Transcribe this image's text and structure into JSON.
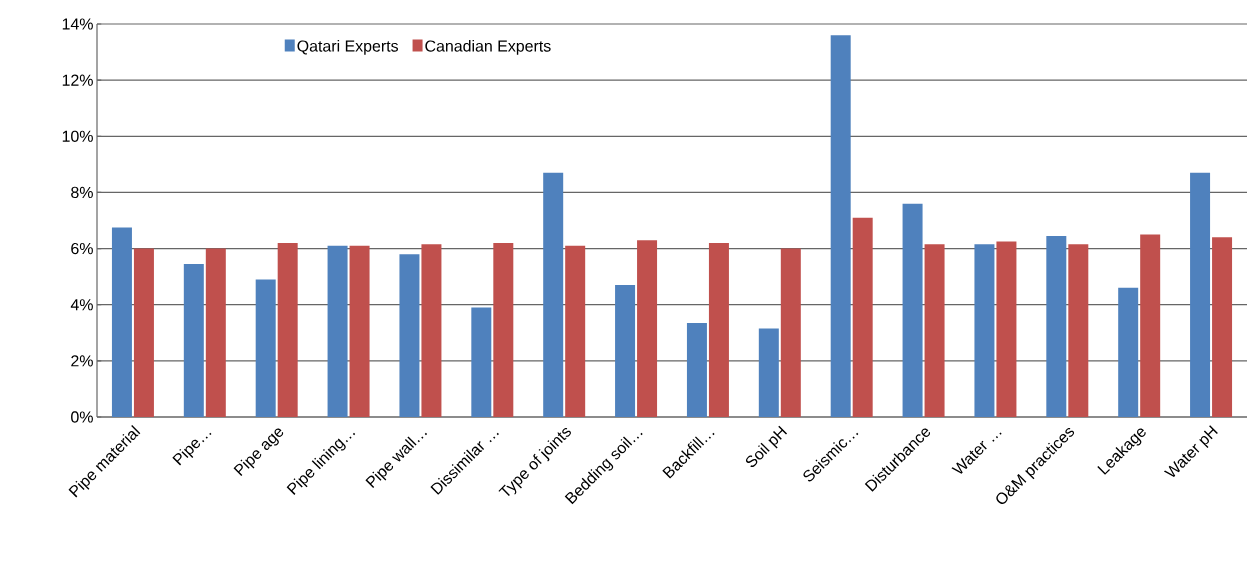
{
  "chart_data": {
    "type": "bar",
    "categories": [
      "Pipe material",
      "Pipe…",
      "Pipe age",
      "Pipe lining…",
      "Pipe wall…",
      "Dissimilar …",
      "Type of joints",
      "Bedding soil…",
      "Backfill…",
      "Soil pH",
      "Seismic…",
      "Disturbance",
      "Water …",
      "O&M practices",
      "Leakage",
      "Water pH"
    ],
    "series": [
      {
        "name": "Qatari Experts",
        "color": "#4f81bd",
        "values": [
          6.75,
          5.45,
          4.9,
          6.1,
          5.8,
          3.9,
          8.7,
          4.7,
          3.35,
          3.15,
          13.6,
          7.6,
          6.15,
          6.45,
          4.6,
          8.7
        ]
      },
      {
        "name": "Canadian Experts",
        "color": "#c0504d",
        "values": [
          6.0,
          6.0,
          6.2,
          6.1,
          6.15,
          6.2,
          6.1,
          6.3,
          6.2,
          6.0,
          7.1,
          6.15,
          6.25,
          6.15,
          6.5,
          6.4
        ]
      }
    ],
    "ylim": [
      0,
      14
    ],
    "yticks": [
      {
        "value": 0,
        "label": "0%"
      },
      {
        "value": 2,
        "label": "2%"
      },
      {
        "value": 4,
        "label": "4%"
      },
      {
        "value": 6,
        "label": "6%"
      },
      {
        "value": 8,
        "label": "8%"
      },
      {
        "value": 10,
        "label": "10%"
      },
      {
        "value": 12,
        "label": "12%"
      },
      {
        "value": 14,
        "label": "14%"
      }
    ],
    "grid": "y",
    "legend": "top left"
  }
}
